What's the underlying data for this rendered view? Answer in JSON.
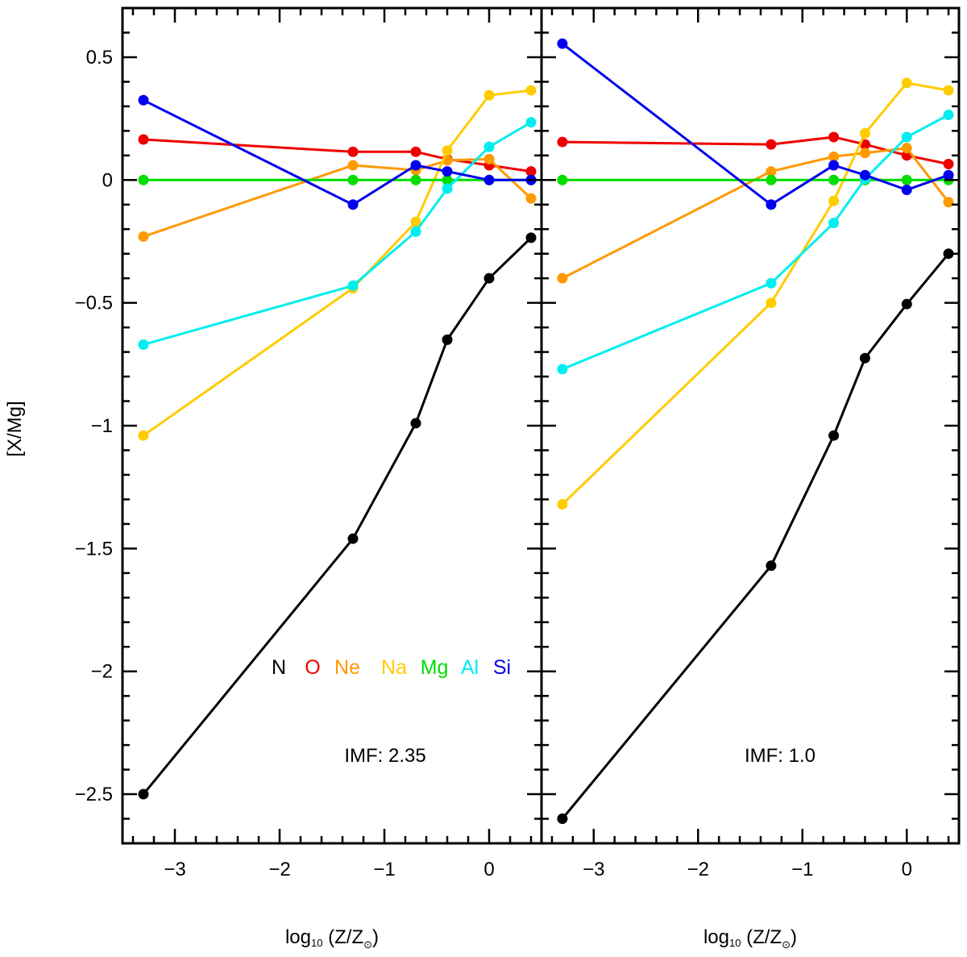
{
  "chart_data": [
    {
      "type": "line",
      "panel": "left",
      "annotation": "IMF: 2.35",
      "xlabel": "log",
      "xlabel_sub": "10",
      "xlabel_rest": " (Z/Z",
      "xlabel_sun": "⊙",
      "xlabel_close": ")",
      "ylabel": "[X/Mg]",
      "xlim": [
        -3.5,
        0.5
      ],
      "ylim": [
        -2.7,
        0.7
      ],
      "xticks": [
        -3,
        -2,
        -1,
        0
      ],
      "xtick_labels": [
        "−3",
        "−2",
        "−1",
        "0"
      ],
      "yticks": [
        0.5,
        0,
        -0.5,
        -1,
        -1.5,
        -2,
        -2.5
      ],
      "ytick_labels": [
        "0.5",
        "0",
        "−0.5",
        "−1",
        "−1.5",
        "−2",
        "−2.5"
      ],
      "x": [
        -3.3,
        -1.3,
        -0.7,
        -0.4,
        0.0,
        0.4
      ],
      "series": [
        {
          "name": "N",
          "color": "#000000",
          "values": [
            -2.5,
            -1.46,
            -0.99,
            -0.65,
            -0.4,
            -0.235
          ]
        },
        {
          "name": "O",
          "color": "#ee0000",
          "values": [
            0.165,
            0.115,
            0.115,
            0.085,
            0.06,
            0.035
          ]
        },
        {
          "name": "Ne",
          "color": "#ff9900",
          "values": [
            -0.23,
            0.06,
            0.04,
            0.08,
            0.085,
            -0.075
          ]
        },
        {
          "name": "Na",
          "color": "#ffcc00",
          "values": [
            -1.04,
            -0.44,
            -0.17,
            0.12,
            0.345,
            0.365
          ]
        },
        {
          "name": "Mg",
          "color": "#00dd00",
          "values": [
            0.0,
            0.0,
            0.0,
            0.0,
            0.0,
            0.0
          ]
        },
        {
          "name": "Al",
          "color": "#00eeee",
          "values": [
            -0.67,
            -0.43,
            -0.21,
            -0.035,
            0.135,
            0.235
          ]
        },
        {
          "name": "Si",
          "color": "#0000ee",
          "values": [
            0.325,
            -0.1,
            0.06,
            0.035,
            0.0,
            0.0
          ]
        }
      ]
    },
    {
      "type": "line",
      "panel": "right",
      "annotation": "IMF: 1.0",
      "xlabel": "log",
      "xlabel_sub": "10",
      "xlabel_rest": " (Z/Z",
      "xlabel_sun": "⊙",
      "xlabel_close": ")",
      "xlim": [
        -3.5,
        0.5
      ],
      "ylim": [
        -2.7,
        0.7
      ],
      "xticks": [
        -3,
        -2,
        -1,
        0
      ],
      "xtick_labels": [
        "−3",
        "−2",
        "−1",
        "0"
      ],
      "x": [
        -3.3,
        -1.3,
        -0.7,
        -0.4,
        0.0,
        0.4
      ],
      "series": [
        {
          "name": "N",
          "color": "#000000",
          "values": [
            -2.6,
            -1.57,
            -1.04,
            -0.725,
            -0.505,
            -0.3
          ]
        },
        {
          "name": "O",
          "color": "#ee0000",
          "values": [
            0.155,
            0.145,
            0.175,
            0.145,
            0.1,
            0.065
          ]
        },
        {
          "name": "Ne",
          "color": "#ff9900",
          "values": [
            -0.4,
            0.035,
            0.095,
            0.11,
            0.13,
            -0.09
          ]
        },
        {
          "name": "Na",
          "color": "#ffcc00",
          "values": [
            -1.32,
            -0.5,
            -0.085,
            0.19,
            0.395,
            0.365
          ]
        },
        {
          "name": "Mg",
          "color": "#00dd00",
          "values": [
            0.0,
            0.0,
            0.0,
            0.0,
            0.0,
            0.0
          ]
        },
        {
          "name": "Al",
          "color": "#00eeee",
          "values": [
            -0.77,
            -0.42,
            -0.175,
            0.005,
            0.175,
            0.265
          ]
        },
        {
          "name": "Si",
          "color": "#0000ee",
          "values": [
            0.555,
            -0.1,
            0.06,
            0.02,
            -0.04,
            0.02
          ]
        }
      ]
    }
  ],
  "legend": [
    {
      "label": "N",
      "color": "#000000"
    },
    {
      "label": "O",
      "color": "#ee0000"
    },
    {
      "label": "Ne",
      "color": "#ff9900"
    },
    {
      "label": "Na",
      "color": "#ffcc00"
    },
    {
      "label": "Mg",
      "color": "#00dd00"
    },
    {
      "label": "Al",
      "color": "#00eeee"
    },
    {
      "label": "Si",
      "color": "#0000ee"
    }
  ]
}
